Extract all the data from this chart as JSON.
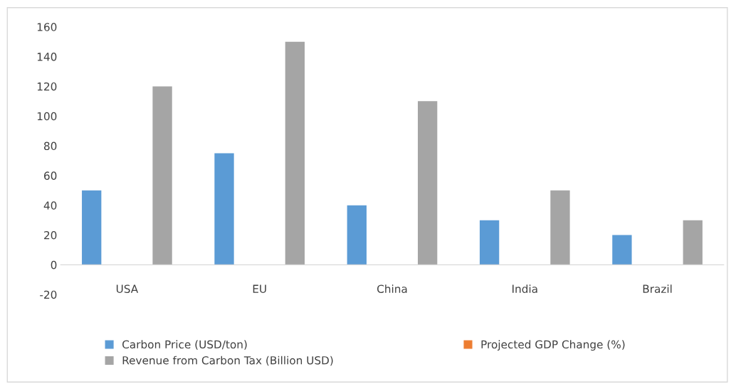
{
  "chart_data": {
    "type": "bar",
    "categories": [
      "USA",
      "EU",
      "China",
      "India",
      "Brazil"
    ],
    "series": [
      {
        "name": "Carbon Price (USD/ton)",
        "color": "#5b9bd5",
        "values": [
          50,
          75,
          40,
          30,
          20
        ]
      },
      {
        "name": "Projected GDP Change (%)",
        "color": "#ed7d31",
        "values": [
          null,
          null,
          null,
          null,
          null
        ]
      },
      {
        "name": "Revenue from Carbon Tax (Billion USD)",
        "color": "#a5a5a5",
        "values": [
          120,
          150,
          110,
          50,
          30
        ]
      }
    ],
    "ylim": [
      -20,
      160
    ],
    "yticks": [
      -20,
      0,
      20,
      40,
      60,
      80,
      100,
      120,
      140,
      160
    ],
    "grid": false,
    "legend": "bottom"
  }
}
